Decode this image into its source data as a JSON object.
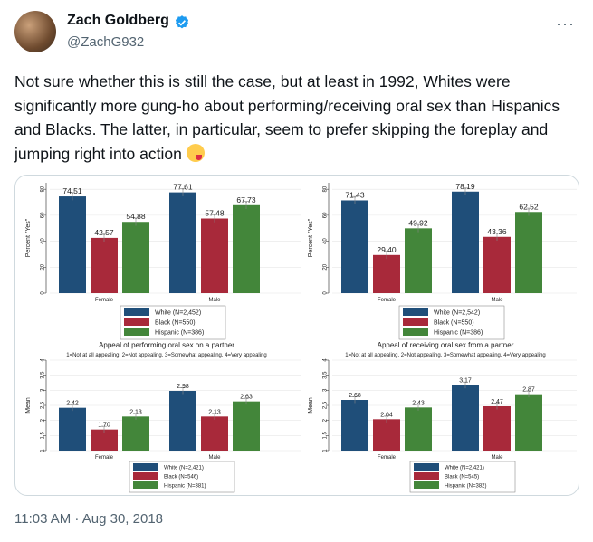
{
  "tweet": {
    "author_name": "Zach Goldberg",
    "handle": "@ZachG932",
    "text": "Not sure whether this is still the case, but at least in 1992, Whites were significantly more gung-ho about performing/receiving oral sex than Hispanics and Blacks. The latter, in particular, seem to prefer skipping the foreplay and jumping right into action",
    "emoji": "face-savoring-food-emoji",
    "timestamp": "11:03 AM · Aug 30, 2018",
    "more_label": "···"
  },
  "colors": {
    "white": "#1f4e79",
    "black": "#a8293a",
    "hispanic": "#43863a"
  },
  "chart_data": [
    {
      "type": "bar",
      "categories": [
        "Female",
        "Male"
      ],
      "ylabel": "Percent \"Yes\"",
      "yticks": [
        "0",
        "20",
        "40",
        "60",
        "80"
      ],
      "ylim": [
        0,
        85
      ],
      "series": [
        {
          "name": "White (N=2,452)",
          "values": [
            74.51,
            77.61
          ],
          "labels": [
            "74.51",
            "77.61"
          ]
        },
        {
          "name": "Black (N=550)",
          "values": [
            42.57,
            57.48
          ],
          "labels": [
            "42.57",
            "57.48"
          ]
        },
        {
          "name": "Hispanic (N=386)",
          "values": [
            54.88,
            67.73
          ],
          "labels": [
            "54.88",
            "67.73"
          ]
        }
      ],
      "title": "Appeal of performing oral sex on a partner",
      "subtitle": "1=Not at all appealing, 2=Not appealing, 3=Somewhat appealing, 4=Very appealing"
    },
    {
      "type": "bar",
      "categories": [
        "Female",
        "Male"
      ],
      "ylabel": "Percent \"Yes\"",
      "yticks": [
        "0",
        "20",
        "40",
        "60",
        "80"
      ],
      "ylim": [
        0,
        85
      ],
      "series": [
        {
          "name": "White (N=2,542)",
          "values": [
            71.43,
            78.19
          ],
          "labels": [
            "71.43",
            "78.19"
          ]
        },
        {
          "name": "Black (N=550)",
          "values": [
            29.4,
            43.36
          ],
          "labels": [
            "29.40",
            "43.36"
          ]
        },
        {
          "name": "Hispanic (N=386)",
          "values": [
            49.92,
            62.52
          ],
          "labels": [
            "49.92",
            "62.52"
          ]
        }
      ],
      "title": "Appeal of receiving oral sex from a partner",
      "subtitle": "1=Not at all appealing, 2=Not appealing, 3=Somewhat appealing, 4=Very appealing"
    },
    {
      "type": "bar",
      "categories": [
        "Female",
        "Male"
      ],
      "ylabel": "Mean",
      "yticks": [
        "1",
        "1.5",
        "2",
        "2.5",
        "3",
        "3.5",
        "4"
      ],
      "ylim": [
        1,
        4
      ],
      "series": [
        {
          "name": "White (N=2,421)",
          "values": [
            2.42,
            2.98
          ],
          "labels": [
            "2.42",
            "2.98"
          ]
        },
        {
          "name": "Black (N=546)",
          "values": [
            1.7,
            2.13
          ],
          "labels": [
            "1.70",
            "2.13"
          ]
        },
        {
          "name": "Hispanic (N=381)",
          "values": [
            2.13,
            2.63
          ],
          "labels": [
            "2.13",
            "2.63"
          ]
        }
      ]
    },
    {
      "type": "bar",
      "categories": [
        "Female",
        "Male"
      ],
      "ylabel": "Mean",
      "yticks": [
        "1",
        "1.5",
        "2",
        "2.5",
        "3",
        "3.5",
        "4"
      ],
      "ylim": [
        1,
        4
      ],
      "series": [
        {
          "name": "White (N=2,421)",
          "values": [
            2.68,
            3.17
          ],
          "labels": [
            "2.68",
            "3.17"
          ]
        },
        {
          "name": "Black (N=545)",
          "values": [
            2.04,
            2.47
          ],
          "labels": [
            "2.04",
            "2.47"
          ]
        },
        {
          "name": "Hispanic (N=382)",
          "values": [
            2.43,
            2.87
          ],
          "labels": [
            "2.43",
            "2.87"
          ]
        }
      ]
    }
  ]
}
